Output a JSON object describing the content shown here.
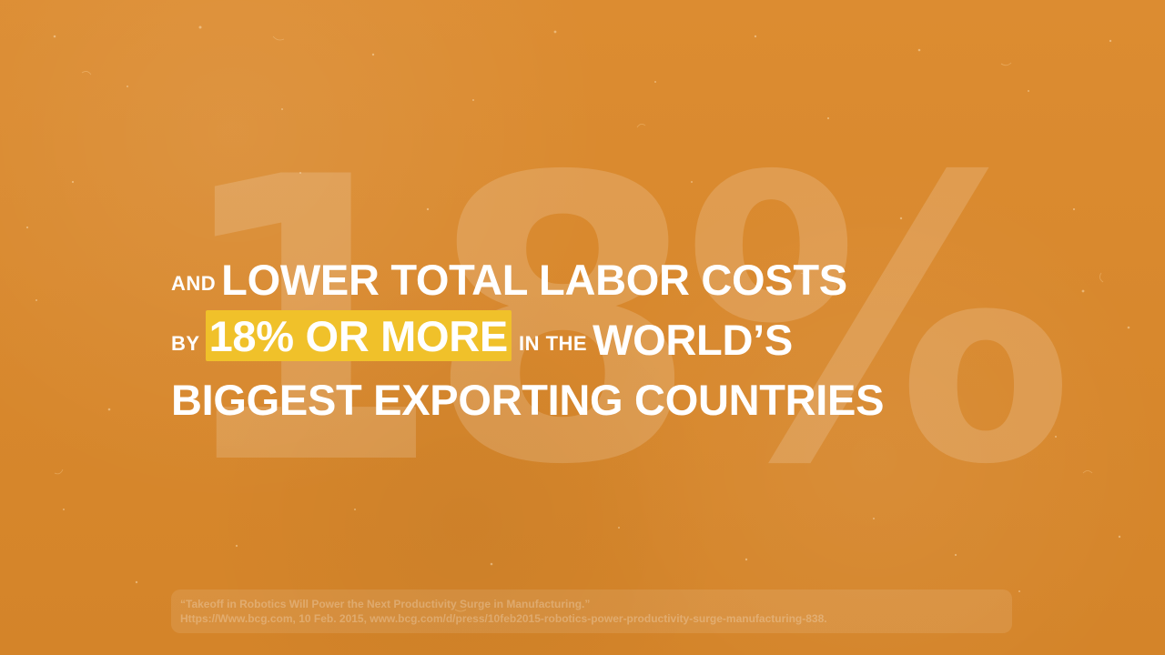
{
  "background": {
    "color": "#d9892f",
    "highlight_color": "#f0c12a",
    "text_color": "#ffffff"
  },
  "big_number": "18%",
  "headline": {
    "line1": {
      "prefix": "AND",
      "main": "LOWER TOTAL LABOR COSTS"
    },
    "line2": {
      "prefix": "BY",
      "highlight": "18% OR MORE",
      "connector": "IN THE",
      "main": "WORLD’S"
    },
    "line3": {
      "main": "BIGGEST EXPORTING COUNTRIES"
    }
  },
  "citation": {
    "line1": "“Takeoff in Robotics Will Power the Next Productivity Surge in Manufacturing.”",
    "line2": "Https://Www.bcg.com, 10 Feb. 2015, www.bcg.com/d/press/10feb2015-robotics-power-productivity-surge-manufacturing-838."
  }
}
